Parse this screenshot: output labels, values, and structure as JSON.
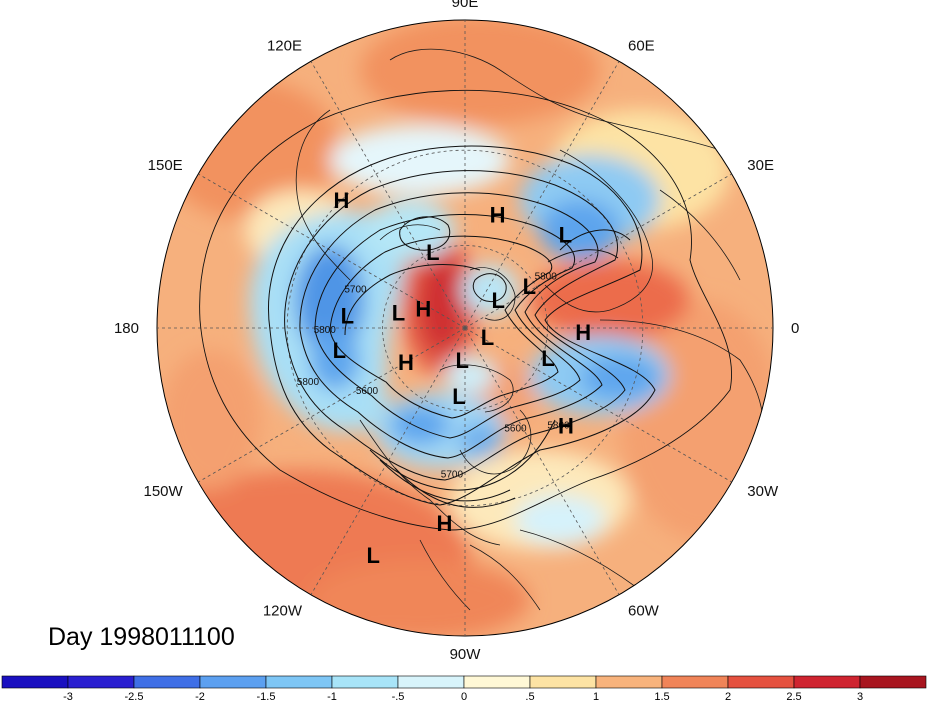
{
  "map": {
    "title": "Day 1998011100",
    "projection": "north-polar-stereographic",
    "longitude_labels": [
      {
        "text": "90E",
        "lon": 90
      },
      {
        "text": "60E",
        "lon": 60
      },
      {
        "text": "30E",
        "lon": 30
      },
      {
        "text": "0",
        "lon": 0
      },
      {
        "text": "30W",
        "lon": -30
      },
      {
        "text": "60W",
        "lon": -60
      },
      {
        "text": "90W",
        "lon": -90
      },
      {
        "text": "120W",
        "lon": -120
      },
      {
        "text": "150W",
        "lon": -150
      },
      {
        "text": "180",
        "lon": 180
      },
      {
        "text": "150E",
        "lon": 150
      },
      {
        "text": "120E",
        "lon": 120
      }
    ],
    "pressure_centers": [
      {
        "text": "H",
        "lat": 48,
        "lon": 74
      },
      {
        "text": "L",
        "lat": 42,
        "lon": 43
      },
      {
        "text": "H",
        "lat": 30,
        "lon": 134
      },
      {
        "text": "L",
        "lat": 60,
        "lon": 113
      },
      {
        "text": "L",
        "lat": 62,
        "lon": 33
      },
      {
        "text": "L",
        "lat": 48,
        "lon": 174
      },
      {
        "text": "L",
        "lat": 74,
        "lon": 40
      },
      {
        "text": "H",
        "lat": 73,
        "lon": 155
      },
      {
        "text": "L",
        "lat": 65,
        "lon": 167
      },
      {
        "text": "H",
        "lat": 48,
        "lon": -2
      },
      {
        "text": "L",
        "lat": 81,
        "lon": -22
      },
      {
        "text": "L",
        "lat": 45,
        "lon": 190
      },
      {
        "text": "H",
        "lat": 65,
        "lon": -150
      },
      {
        "text": "L",
        "lat": 78,
        "lon": -95
      },
      {
        "text": "L",
        "lat": 58,
        "lon": -20
      },
      {
        "text": "L",
        "lat": 65,
        "lon": -95
      },
      {
        "text": "H",
        "lat": 41,
        "lon": -44
      },
      {
        "text": "H",
        "lat": 25,
        "lon": -96
      },
      {
        "text": "L",
        "lat": 13,
        "lon": -112
      }
    ],
    "contour_labels": [
      {
        "text": "5700",
        "lat": 49,
        "lon": 162
      },
      {
        "text": "5800",
        "lat": 41,
        "lon": 182
      },
      {
        "text": "5800",
        "lat": 33,
        "lon": -160
      },
      {
        "text": "5600",
        "lat": 48,
        "lon": -146
      },
      {
        "text": "5700",
        "lat": 38,
        "lon": -95
      },
      {
        "text": "5600",
        "lat": 49,
        "lon": -64
      },
      {
        "text": "5800",
        "lat": 42,
        "lon": -47
      },
      {
        "text": "5800",
        "lat": 56,
        "lon": 31
      }
    ],
    "colorbar": {
      "ticks": [
        "-3",
        "-2.5",
        "-2",
        "-1.5",
        "-1",
        "-.5",
        "0",
        ".5",
        "1",
        "1.5",
        "2",
        "2.5",
        "3"
      ],
      "colors": [
        "#2a1fd0",
        "#3f6fe6",
        "#5ca0f0",
        "#7ec6f5",
        "#a8e4f8",
        "#d8f4fb",
        "#fff8d6",
        "#fde3a4",
        "#f8b37c",
        "#f08458",
        "#e5513f",
        "#cf2430",
        "#a8151f"
      ]
    }
  }
}
